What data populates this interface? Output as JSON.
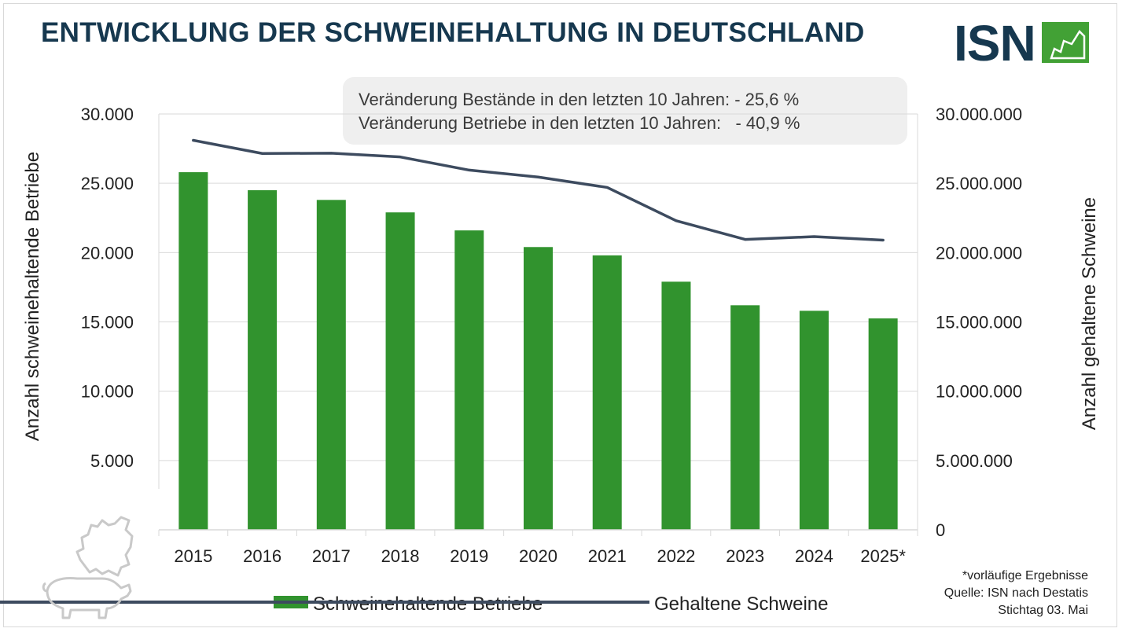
{
  "header": {
    "title": "ENTWICKLUNG DER SCHWEINEHALTUNG IN DEUTSCHLAND",
    "logo_text": "ISN"
  },
  "info": {
    "line1": "Veränderung Bestände in den letzten 10 Jahren: - 25,6 %",
    "line2": "Veränderung Betriebe in den letzten 10 Jahren:   - 40,9 %"
  },
  "colors": {
    "bar": "#31932e",
    "line": "#3d4b5f",
    "title": "#16384f",
    "logo_green": "#42a135"
  },
  "chart_data": {
    "type": "bar",
    "categories": [
      "2015",
      "2016",
      "2017",
      "2018",
      "2019",
      "2020",
      "2021",
      "2022",
      "2023",
      "2024",
      "2025*"
    ],
    "series": [
      {
        "name": "Schweinehaltende Betriebe",
        "type": "bar",
        "axis": "left",
        "values": [
          25800,
          24500,
          23800,
          22900,
          21600,
          20400,
          19800,
          17900,
          16200,
          15800,
          15250
        ]
      },
      {
        "name": "Gehaltene Schweine",
        "type": "line",
        "axis": "right",
        "values": [
          28100000,
          27150000,
          27170000,
          26900000,
          25950000,
          25450000,
          24700000,
          22300000,
          20950000,
          21150000,
          20900000
        ]
      }
    ],
    "ylabel": "Anzahl schweinehaltende Betriebe",
    "y2label": "Anzahl gehaltene Schweine",
    "ylim": [
      0,
      30000
    ],
    "y2lim": [
      0,
      30000000
    ],
    "yticks": [
      "5.000",
      "10.000",
      "15.000",
      "20.000",
      "25.000",
      "30.000"
    ],
    "y2ticks": [
      "0",
      "5.000.000",
      "10.000.000",
      "15.000.000",
      "20.000.000",
      "25.000.000",
      "30.000.000"
    ],
    "grid": true,
    "legend_position": "bottom"
  },
  "footnote": {
    "line1": "*vorläufige Ergebnisse",
    "line2": "Quelle: ISN nach Destatis",
    "line3": "Stichtag 03. Mai"
  }
}
